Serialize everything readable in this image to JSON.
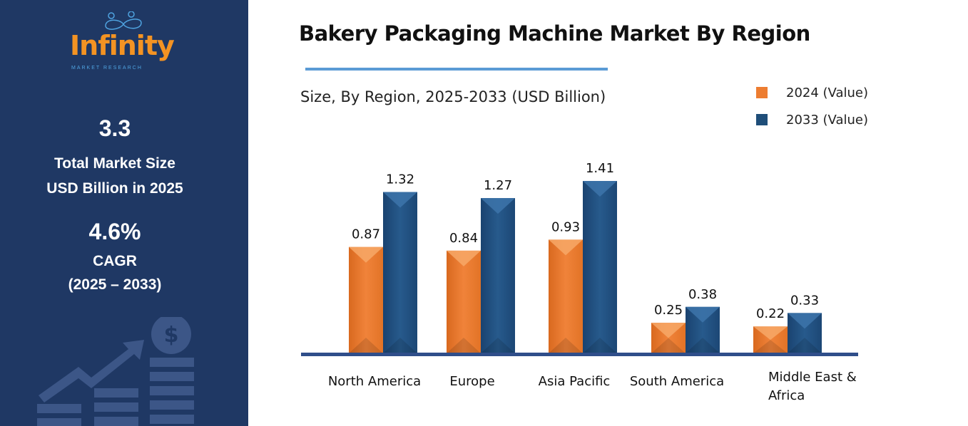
{
  "sidebar": {
    "logo_text": "Infinity",
    "logo_subtext": "MARKET RESEARCH",
    "market_size_value": "3.3",
    "market_size_label_1": "Total Market Size",
    "market_size_label_2": "USD Billion in 2025",
    "cagr_value": "4.6%",
    "cagr_label": "CAGR",
    "cagr_period": "(2025 – 2033)"
  },
  "chart_data": {
    "type": "bar",
    "title": "Bakery Packaging Machine Market By Region",
    "subtitle": "Size, By Region, 2025-2033 (USD Billion)",
    "categories": [
      "North America",
      "Europe",
      "Asia Pacific",
      "South America",
      "Middle East & Africa"
    ],
    "series": [
      {
        "name": "2024 (Value)",
        "color": "#ed7d31",
        "values": [
          0.87,
          0.84,
          0.93,
          0.25,
          0.22
        ]
      },
      {
        "name": "2033 (Value)",
        "color": "#1f4e79",
        "values": [
          1.32,
          1.27,
          1.41,
          0.38,
          0.33
        ]
      }
    ],
    "legend": "top-right",
    "grid": false,
    "data_labels": true
  }
}
